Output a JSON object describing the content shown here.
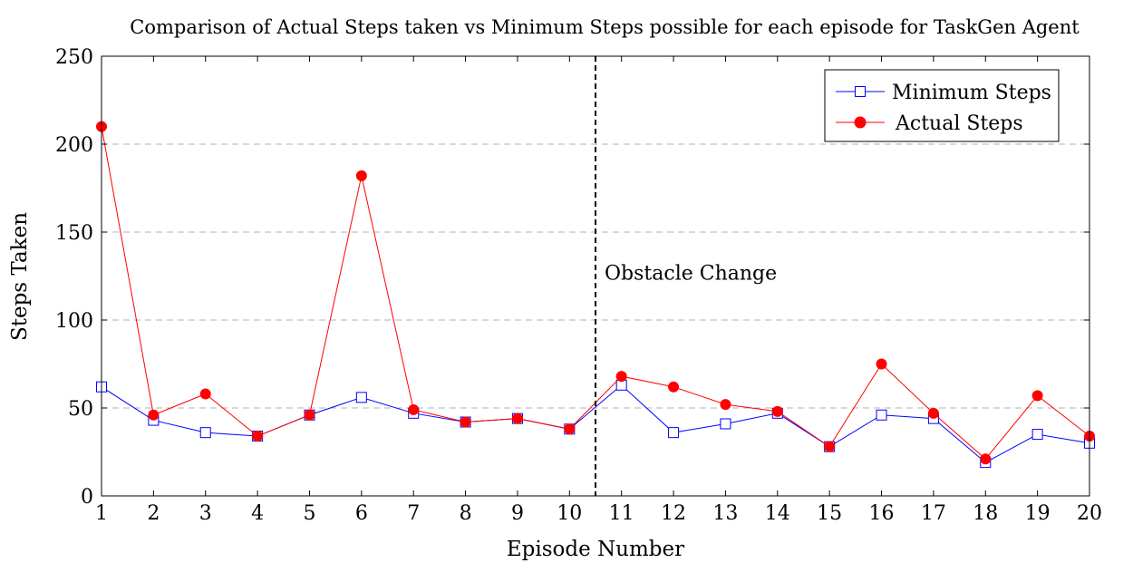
{
  "chart_data": {
    "type": "line",
    "title": "Comparison of Actual Steps taken vs Minimum Steps possible for each episode for TaskGen Agent",
    "xlabel": "Episode Number",
    "ylabel": "Steps Taken",
    "x": [
      1,
      2,
      3,
      4,
      5,
      6,
      7,
      8,
      9,
      10,
      11,
      12,
      13,
      14,
      15,
      16,
      17,
      18,
      19,
      20
    ],
    "xlim": [
      1,
      20
    ],
    "ylim": [
      0,
      250
    ],
    "yticks": [
      0,
      50,
      100,
      150,
      200,
      250
    ],
    "grid": "horizontal-dashed",
    "legend_position": "top-right",
    "series": [
      {
        "name": "Minimum Steps",
        "color": "#0000ff",
        "marker": "open-square",
        "values": [
          62,
          43,
          36,
          34,
          46,
          56,
          47,
          42,
          44,
          38,
          63,
          36,
          41,
          47,
          28,
          46,
          44,
          19,
          35,
          30
        ]
      },
      {
        "name": "Actual Steps",
        "color": "#ff0000",
        "marker": "filled-circle",
        "values": [
          210,
          46,
          58,
          34,
          46,
          182,
          49,
          42,
          44,
          38,
          68,
          62,
          52,
          48,
          28,
          75,
          47,
          21,
          57,
          34
        ]
      }
    ],
    "annotations": [
      {
        "text": "Obstacle Change",
        "x": 10.5,
        "y": 125,
        "line": "vertical-dashed"
      }
    ]
  }
}
